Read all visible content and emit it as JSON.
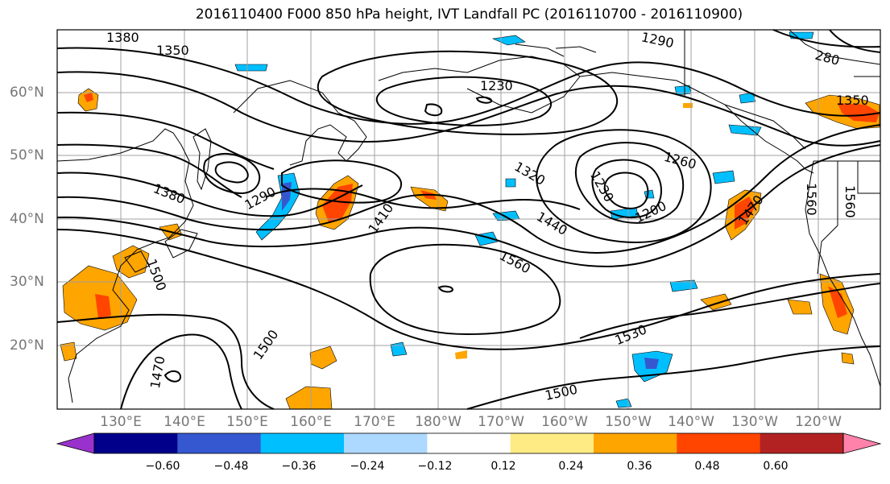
{
  "title": "2016110400 F000 850 hPa height, IVT Landfall PC (2016110700 - 2016110900)",
  "lon_labels": [
    "130°E",
    "140°E",
    "150°E",
    "160°E",
    "170°E",
    "180°W",
    "170°W",
    "160°W",
    "150°W",
    "140°W",
    "130°W",
    "120°W"
  ],
  "lat_labels": [
    "60°N",
    "50°N",
    "40°N",
    "30°N",
    "20°N"
  ],
  "contour_labels": [
    "1380",
    "1350",
    "1290",
    "1230",
    "1320",
    "1260",
    "1230",
    "1200",
    "1380",
    "1290",
    "1410",
    "1440",
    "1560",
    "1470",
    "1350",
    "1500",
    "1470",
    "1530",
    "1500",
    "1560",
    "1560",
    "280",
    "1500"
  ],
  "colorbar": {
    "ticks": [
      "−0.60",
      "−0.48",
      "−0.36",
      "−0.24",
      "−0.12",
      "0.12",
      "0.24",
      "0.36",
      "0.48",
      "0.60"
    ],
    "colors": [
      "#9932cc",
      "#00008b",
      "#3558d0",
      "#00bfff",
      "#add8ff",
      "#ffffff",
      "#ffeb84",
      "#ffa500",
      "#ff4500",
      "#b22222",
      "#ff82ab"
    ]
  },
  "colors": {
    "grid": "#a0a0a0",
    "positive_shading": "#ffa500",
    "negative_shading": "#00bfff",
    "contour": "#000000"
  }
}
